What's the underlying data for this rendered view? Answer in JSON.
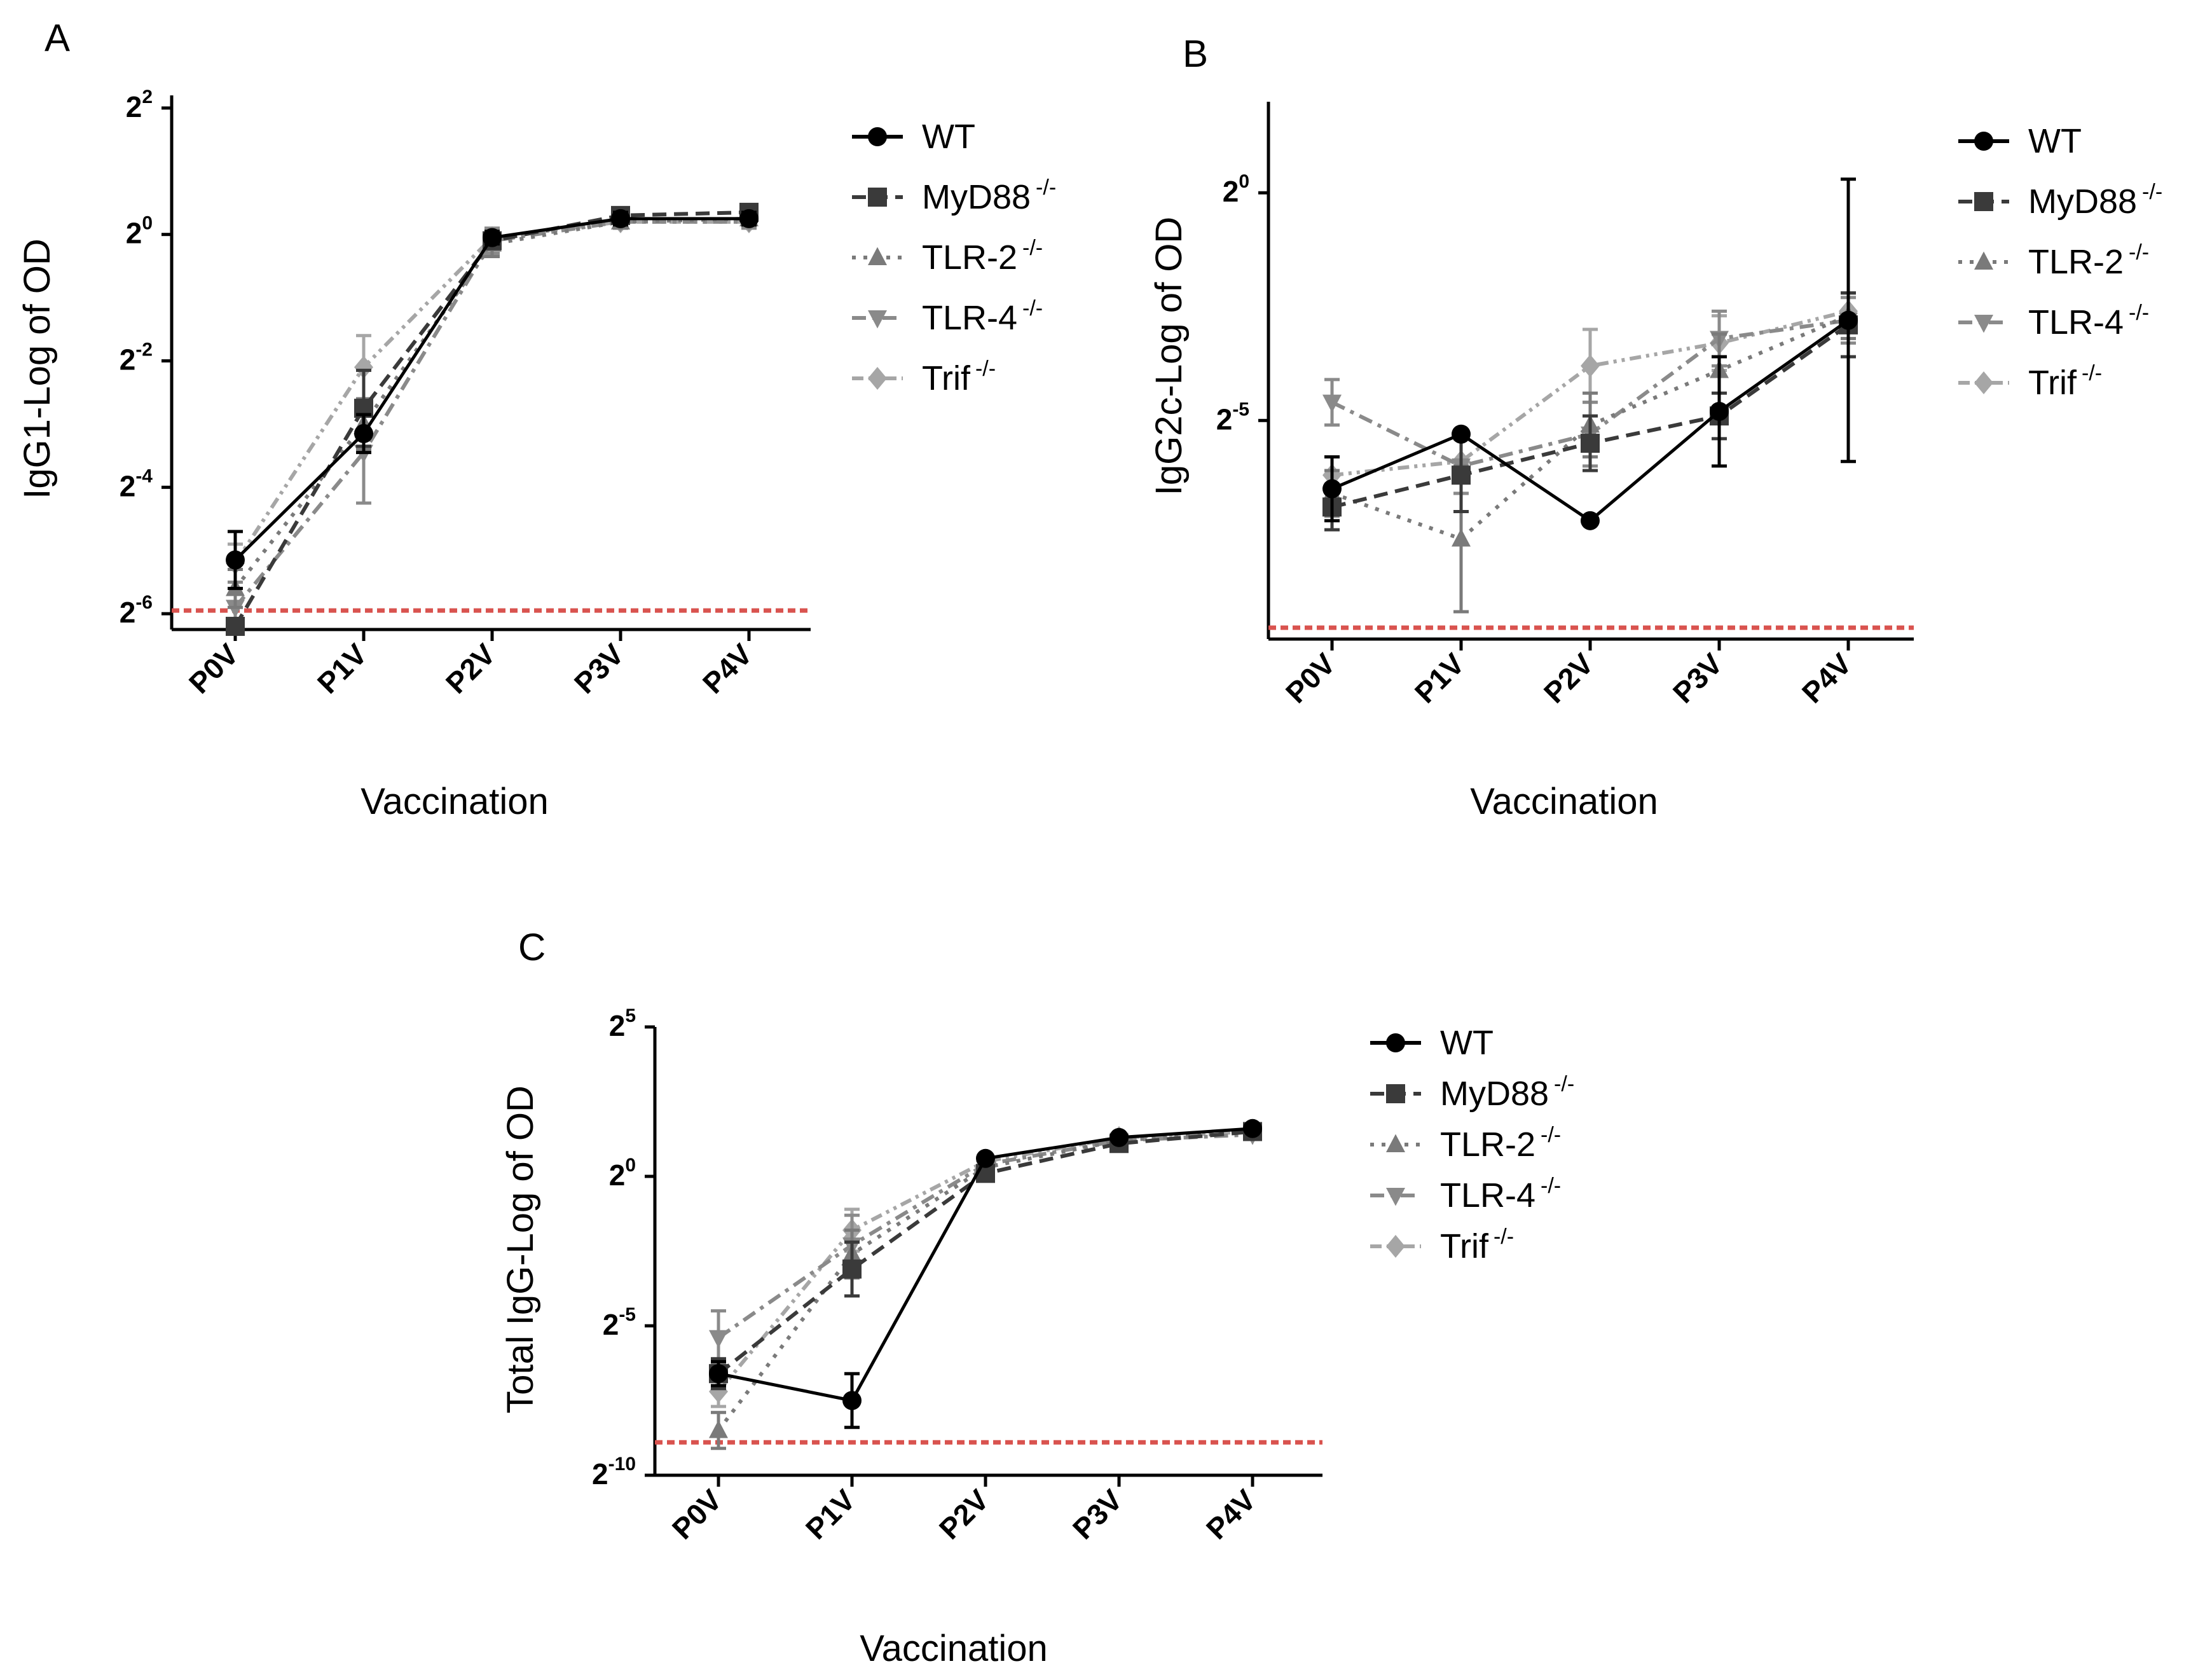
{
  "legend_entries": [
    {
      "label": "WT",
      "sup": ""
    },
    {
      "label": "MyD88",
      "sup": "-/-"
    },
    {
      "label": "TLR-2",
      "sup": "-/-"
    },
    {
      "label": "TLR-4",
      "sup": "-/-"
    },
    {
      "label": "Trif",
      "sup": "-/-"
    }
  ],
  "series_styles": [
    {
      "color": "#000000",
      "marker": "circle",
      "dash": ""
    },
    {
      "color": "#3a3a3a",
      "marker": "square",
      "dash": "dashed"
    },
    {
      "color": "#7a7a7a",
      "marker": "triangle-up",
      "dash": "dotted"
    },
    {
      "color": "#8a8a8a",
      "marker": "triangle-down",
      "dash": "dash-dot"
    },
    {
      "color": "#a6a6a6",
      "marker": "diamond",
      "dash": "dash-dot-dot"
    }
  ],
  "cutoff_color": "#d9534f",
  "chart_data": [
    {
      "panel": "A",
      "type": "line",
      "ylabel": "IgG1-Log of OD",
      "xlabel": "Vaccination",
      "categories": [
        "P0V",
        "P1V",
        "P2V",
        "P3V",
        "P4V"
      ],
      "y_scale": "log2",
      "yticks": [
        {
          "base": "2",
          "exp": "2",
          "value_exp": 2
        },
        {
          "base": "2",
          "exp": "0",
          "value_exp": 0
        },
        {
          "base": "2",
          "exp": "-2",
          "value_exp": -2
        },
        {
          "base": "2",
          "exp": "-4",
          "value_exp": -4
        },
        {
          "base": "2",
          "exp": "-6",
          "value_exp": -6
        }
      ],
      "ylim_exp": [
        -6.25,
        2.2
      ],
      "cutoff_exp": -5.95,
      "series_exp": [
        [
          -5.15,
          -3.15,
          -0.05,
          0.25,
          0.25
        ],
        [
          -6.2,
          -2.75,
          -0.1,
          0.3,
          0.35
        ],
        [
          -5.6,
          -3.0,
          -0.15,
          0.2,
          0.25
        ],
        [
          -5.9,
          -3.45,
          -0.1,
          0.2,
          0.2
        ],
        [
          -5.2,
          -2.1,
          -0.05,
          0.2,
          0.2
        ]
      ],
      "error_exp": [
        [
          0.45,
          0.3,
          0.1,
          0.1,
          0.1
        ],
        [
          0.0,
          0.6,
          0.1,
          0.1,
          0.1
        ],
        [
          0.3,
          0.4,
          0.2,
          0.1,
          0.1
        ],
        [
          0.4,
          0.8,
          0.2,
          0.1,
          0.1
        ],
        [
          0.3,
          0.5,
          0.1,
          0.1,
          0.1
        ]
      ]
    },
    {
      "panel": "B",
      "type": "line",
      "ylabel": "IgG2c-Log of OD",
      "xlabel": "Vaccination",
      "categories": [
        "P0V",
        "P1V",
        "P2V",
        "P3V",
        "P4V"
      ],
      "y_scale": "log2",
      "yticks": [
        {
          "base": "2",
          "exp": "0",
          "value_exp": 0
        },
        {
          "base": "2",
          "exp": "-5",
          "value_exp": -5
        }
      ],
      "ylim_exp": [
        -9.8,
        2.0
      ],
      "cutoff_exp": -9.55,
      "series_exp": [
        [
          -6.5,
          -5.3,
          -7.2,
          -4.8,
          -2.8
        ],
        [
          -6.9,
          -6.2,
          -5.5,
          -4.9,
          -2.9
        ],
        [
          -6.6,
          -7.6,
          -5.1,
          -3.9,
          -2.7
        ],
        [
          -4.6,
          -6.0,
          -5.3,
          -3.2,
          -2.8
        ],
        [
          -6.2,
          -5.9,
          -3.8,
          -3.3,
          -2.6
        ]
      ],
      "error_exp": [
        [
          0.7,
          0.0,
          0.0,
          1.2,
          3.1
        ],
        [
          0.5,
          0.8,
          0.6,
          0.5,
          0.7
        ],
        [
          0.5,
          1.6,
          0.7,
          0.8,
          0.5
        ],
        [
          0.5,
          0.6,
          0.7,
          0.6,
          0.5
        ],
        [
          0.4,
          0.7,
          0.8,
          0.6,
          0.4
        ]
      ]
    },
    {
      "panel": "C",
      "type": "line",
      "ylabel": "Total IgG-Log of OD",
      "xlabel": "Vaccination",
      "categories": [
        "P0V",
        "P1V",
        "P2V",
        "P3V",
        "P4V"
      ],
      "y_scale": "log2",
      "yticks": [
        {
          "base": "2",
          "exp": "5",
          "value_exp": 5
        },
        {
          "base": "2",
          "exp": "0",
          "value_exp": 0
        },
        {
          "base": "2",
          "exp": "-5",
          "value_exp": -5
        },
        {
          "base": "2",
          "exp": "-10",
          "value_exp": -10
        }
      ],
      "ylim_exp": [
        -10.0,
        5.0
      ],
      "cutoff_exp": -8.9,
      "series_exp": [
        [
          -6.6,
          -7.5,
          0.6,
          1.3,
          1.6
        ],
        [
          -6.6,
          -3.1,
          0.1,
          1.1,
          1.5
        ],
        [
          -8.5,
          -2.6,
          0.3,
          1.2,
          1.5
        ],
        [
          -5.4,
          -2.3,
          0.4,
          1.2,
          1.4
        ],
        [
          -7.2,
          -1.8,
          0.5,
          1.3,
          1.5
        ]
      ],
      "error_exp": [
        [
          0.4,
          0.9,
          0.1,
          0.1,
          0.1
        ],
        [
          0.5,
          0.9,
          0.2,
          0.1,
          0.1
        ],
        [
          0.6,
          0.8,
          0.2,
          0.1,
          0.1
        ],
        [
          0.9,
          1.0,
          0.2,
          0.1,
          0.1
        ],
        [
          0.5,
          0.7,
          0.2,
          0.1,
          0.1
        ]
      ]
    }
  ]
}
